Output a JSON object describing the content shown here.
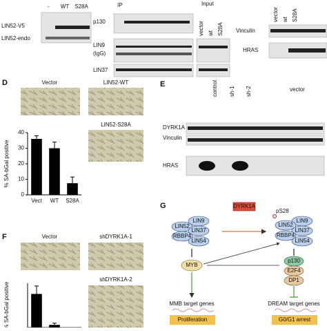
{
  "panel_a": {
    "lanes": [
      "-",
      "WT",
      "S28A"
    ],
    "bands": [
      "LIN52-V5",
      "LIN52-endo"
    ]
  },
  "panel_b": {
    "ip_label": "IP",
    "rows": [
      "p130",
      "LIN9",
      "(IgG)",
      "LIN37"
    ],
    "input_label": "Input",
    "input_lanes": [
      "vector",
      "wt",
      "S28A"
    ]
  },
  "panel_c": {
    "lanes": [
      "vector",
      "wt",
      "S28A"
    ],
    "rows": [
      "Vinculin",
      "HRAS"
    ]
  },
  "panel_d": {
    "letter": "D",
    "images": [
      "Vector",
      "LIN52-WT",
      "LIN52-S28A"
    ],
    "chart": {
      "ylabel": "% SA-bGal positive",
      "categories": [
        "Vect",
        "WT",
        "S28A"
      ],
      "values": [
        36,
        30,
        7.5
      ],
      "errors": [
        2,
        4,
        4
      ],
      "ylim": [
        0,
        40
      ],
      "yticks": [
        0,
        10,
        20,
        30,
        40
      ]
    }
  },
  "panel_e": {
    "letter": "E",
    "groups": [
      "control",
      "sh-1",
      "sh-2",
      "vector"
    ],
    "lanes": [
      "vector",
      "HRAS",
      "vector",
      "HRAS",
      "vector",
      "wt",
      "sh-1",
      "sh-2"
    ],
    "rows": [
      "DYRK1A",
      "Vinculin",
      "HRAS"
    ]
  },
  "panel_f": {
    "letter": "F",
    "images": [
      "Vector",
      "shDYRK1A-1",
      "shDYRK1A-2"
    ],
    "chart": {
      "ylabel": "% SA-bGal positive",
      "values": [
        38,
        3
      ],
      "errors": [
        9,
        2
      ],
      "ylim": [
        0,
        50
      ]
    }
  },
  "panel_g": {
    "letter": "G",
    "kinase": "DYRK1A",
    "phospho": "pS28",
    "muvb": [
      "LIN9",
      "LIN52",
      "LIN37",
      "RBBP4",
      "LIN54"
    ],
    "myb": "MYB",
    "dream": [
      "p130",
      "E2F4",
      "DP1"
    ],
    "targets": [
      "MMB target genes",
      "DREAM target genes"
    ],
    "outcomes": [
      "Proliferation",
      "G0/G1 arrest"
    ]
  }
}
